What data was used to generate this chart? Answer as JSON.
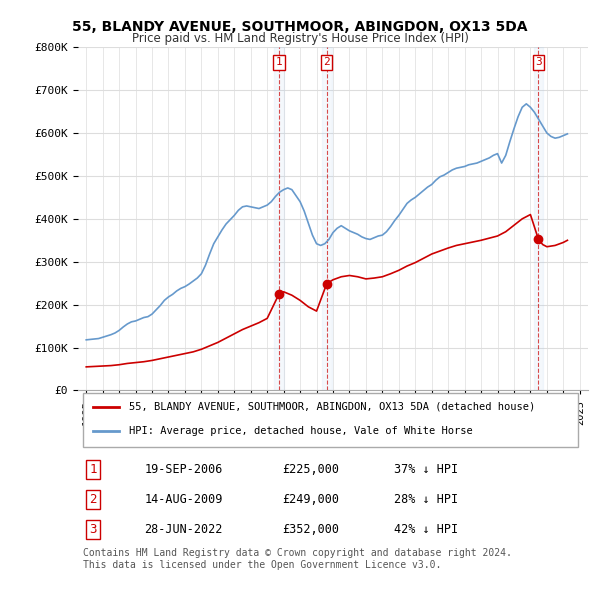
{
  "title": "55, BLANDY AVENUE, SOUTHMOOR, ABINGDON, OX13 5DA",
  "subtitle": "Price paid vs. HM Land Registry's House Price Index (HPI)",
  "ylabel": "",
  "ylim": [
    0,
    800000
  ],
  "yticks": [
    0,
    100000,
    200000,
    300000,
    400000,
    500000,
    600000,
    700000,
    800000
  ],
  "ytick_labels": [
    "£0",
    "£100K",
    "£200K",
    "£300K",
    "£400K",
    "£500K",
    "£600K",
    "£700K",
    "£800K"
  ],
  "hpi_color": "#6699cc",
  "price_color": "#cc0000",
  "sale_marker_color": "#cc0000",
  "legend_label_price": "55, BLANDY AVENUE, SOUTHMOOR, ABINGDON, OX13 5DA (detached house)",
  "legend_label_hpi": "HPI: Average price, detached house, Vale of White Horse",
  "transactions": [
    {
      "num": 1,
      "date": "19-SEP-2006",
      "price": "£225,000",
      "diff": "37% ↓ HPI",
      "year": 2006.72
    },
    {
      "num": 2,
      "date": "14-AUG-2009",
      "price": "£249,000",
      "diff": "28% ↓ HPI",
      "year": 2009.62
    },
    {
      "num": 3,
      "date": "28-JUN-2022",
      "price": "£352,000",
      "diff": "42% ↓ HPI",
      "year": 2022.49
    }
  ],
  "transaction_prices": [
    225000,
    249000,
    352000
  ],
  "footer": "Contains HM Land Registry data © Crown copyright and database right 2024.\nThis data is licensed under the Open Government Licence v3.0.",
  "hpi_data": {
    "years": [
      1995.0,
      1995.25,
      1995.5,
      1995.75,
      1996.0,
      1996.25,
      1996.5,
      1996.75,
      1997.0,
      1997.25,
      1997.5,
      1997.75,
      1998.0,
      1998.25,
      1998.5,
      1998.75,
      1999.0,
      1999.25,
      1999.5,
      1999.75,
      2000.0,
      2000.25,
      2000.5,
      2000.75,
      2001.0,
      2001.25,
      2001.5,
      2001.75,
      2002.0,
      2002.25,
      2002.5,
      2002.75,
      2003.0,
      2003.25,
      2003.5,
      2003.75,
      2004.0,
      2004.25,
      2004.5,
      2004.75,
      2005.0,
      2005.25,
      2005.5,
      2005.75,
      2006.0,
      2006.25,
      2006.5,
      2006.75,
      2007.0,
      2007.25,
      2007.5,
      2007.75,
      2008.0,
      2008.25,
      2008.5,
      2008.75,
      2009.0,
      2009.25,
      2009.5,
      2009.75,
      2010.0,
      2010.25,
      2010.5,
      2010.75,
      2011.0,
      2011.25,
      2011.5,
      2011.75,
      2012.0,
      2012.25,
      2012.5,
      2012.75,
      2013.0,
      2013.25,
      2013.5,
      2013.75,
      2014.0,
      2014.25,
      2014.5,
      2014.75,
      2015.0,
      2015.25,
      2015.5,
      2015.75,
      2016.0,
      2016.25,
      2016.5,
      2016.75,
      2017.0,
      2017.25,
      2017.5,
      2017.75,
      2018.0,
      2018.25,
      2018.5,
      2018.75,
      2019.0,
      2019.25,
      2019.5,
      2019.75,
      2020.0,
      2020.25,
      2020.5,
      2020.75,
      2021.0,
      2021.25,
      2021.5,
      2021.75,
      2022.0,
      2022.25,
      2022.5,
      2022.75,
      2023.0,
      2023.25,
      2023.5,
      2023.75,
      2024.0,
      2024.25
    ],
    "values": [
      118000,
      119000,
      120000,
      121000,
      124000,
      127000,
      130000,
      134000,
      140000,
      148000,
      155000,
      160000,
      162000,
      166000,
      170000,
      172000,
      178000,
      188000,
      198000,
      210000,
      218000,
      224000,
      232000,
      238000,
      242000,
      248000,
      255000,
      262000,
      272000,
      292000,
      318000,
      342000,
      358000,
      374000,
      388000,
      398000,
      408000,
      420000,
      428000,
      430000,
      428000,
      426000,
      424000,
      428000,
      432000,
      440000,
      452000,
      462000,
      468000,
      472000,
      468000,
      454000,
      440000,
      418000,
      390000,
      362000,
      342000,
      338000,
      342000,
      352000,
      368000,
      378000,
      384000,
      378000,
      372000,
      368000,
      364000,
      358000,
      354000,
      352000,
      356000,
      360000,
      362000,
      370000,
      382000,
      396000,
      408000,
      422000,
      436000,
      444000,
      450000,
      458000,
      466000,
      474000,
      480000,
      490000,
      498000,
      502000,
      508000,
      514000,
      518000,
      520000,
      522000,
      526000,
      528000,
      530000,
      534000,
      538000,
      542000,
      548000,
      552000,
      530000,
      548000,
      580000,
      610000,
      638000,
      660000,
      668000,
      660000,
      648000,
      632000,
      616000,
      600000,
      592000,
      588000,
      590000,
      594000,
      598000
    ]
  },
  "price_data": {
    "years": [
      1995.0,
      1995.5,
      1996.0,
      1996.5,
      1997.0,
      1997.5,
      1998.0,
      1998.5,
      1999.0,
      1999.5,
      2000.0,
      2000.5,
      2001.0,
      2001.5,
      2002.0,
      2002.5,
      2003.0,
      2003.5,
      2004.0,
      2004.5,
      2005.0,
      2005.5,
      2006.0,
      2006.72,
      2006.72,
      2007.0,
      2007.5,
      2008.0,
      2008.5,
      2009.0,
      2009.62,
      2009.62,
      2010.0,
      2010.5,
      2011.0,
      2011.5,
      2012.0,
      2012.5,
      2013.0,
      2013.5,
      2014.0,
      2014.5,
      2015.0,
      2015.5,
      2016.0,
      2016.5,
      2017.0,
      2017.5,
      2018.0,
      2018.5,
      2019.0,
      2019.5,
      2020.0,
      2020.5,
      2021.0,
      2021.5,
      2022.0,
      2022.49,
      2022.49,
      2022.75,
      2023.0,
      2023.5,
      2024.0,
      2024.25
    ],
    "values": [
      55000,
      56000,
      57000,
      58000,
      60000,
      63000,
      65000,
      67000,
      70000,
      74000,
      78000,
      82000,
      86000,
      90000,
      96000,
      104000,
      112000,
      122000,
      132000,
      142000,
      150000,
      158000,
      168000,
      225000,
      225000,
      230000,
      222000,
      210000,
      195000,
      185000,
      249000,
      249000,
      258000,
      265000,
      268000,
      265000,
      260000,
      262000,
      265000,
      272000,
      280000,
      290000,
      298000,
      308000,
      318000,
      325000,
      332000,
      338000,
      342000,
      346000,
      350000,
      355000,
      360000,
      370000,
      385000,
      400000,
      410000,
      352000,
      352000,
      340000,
      335000,
      338000,
      345000,
      350000
    ]
  }
}
